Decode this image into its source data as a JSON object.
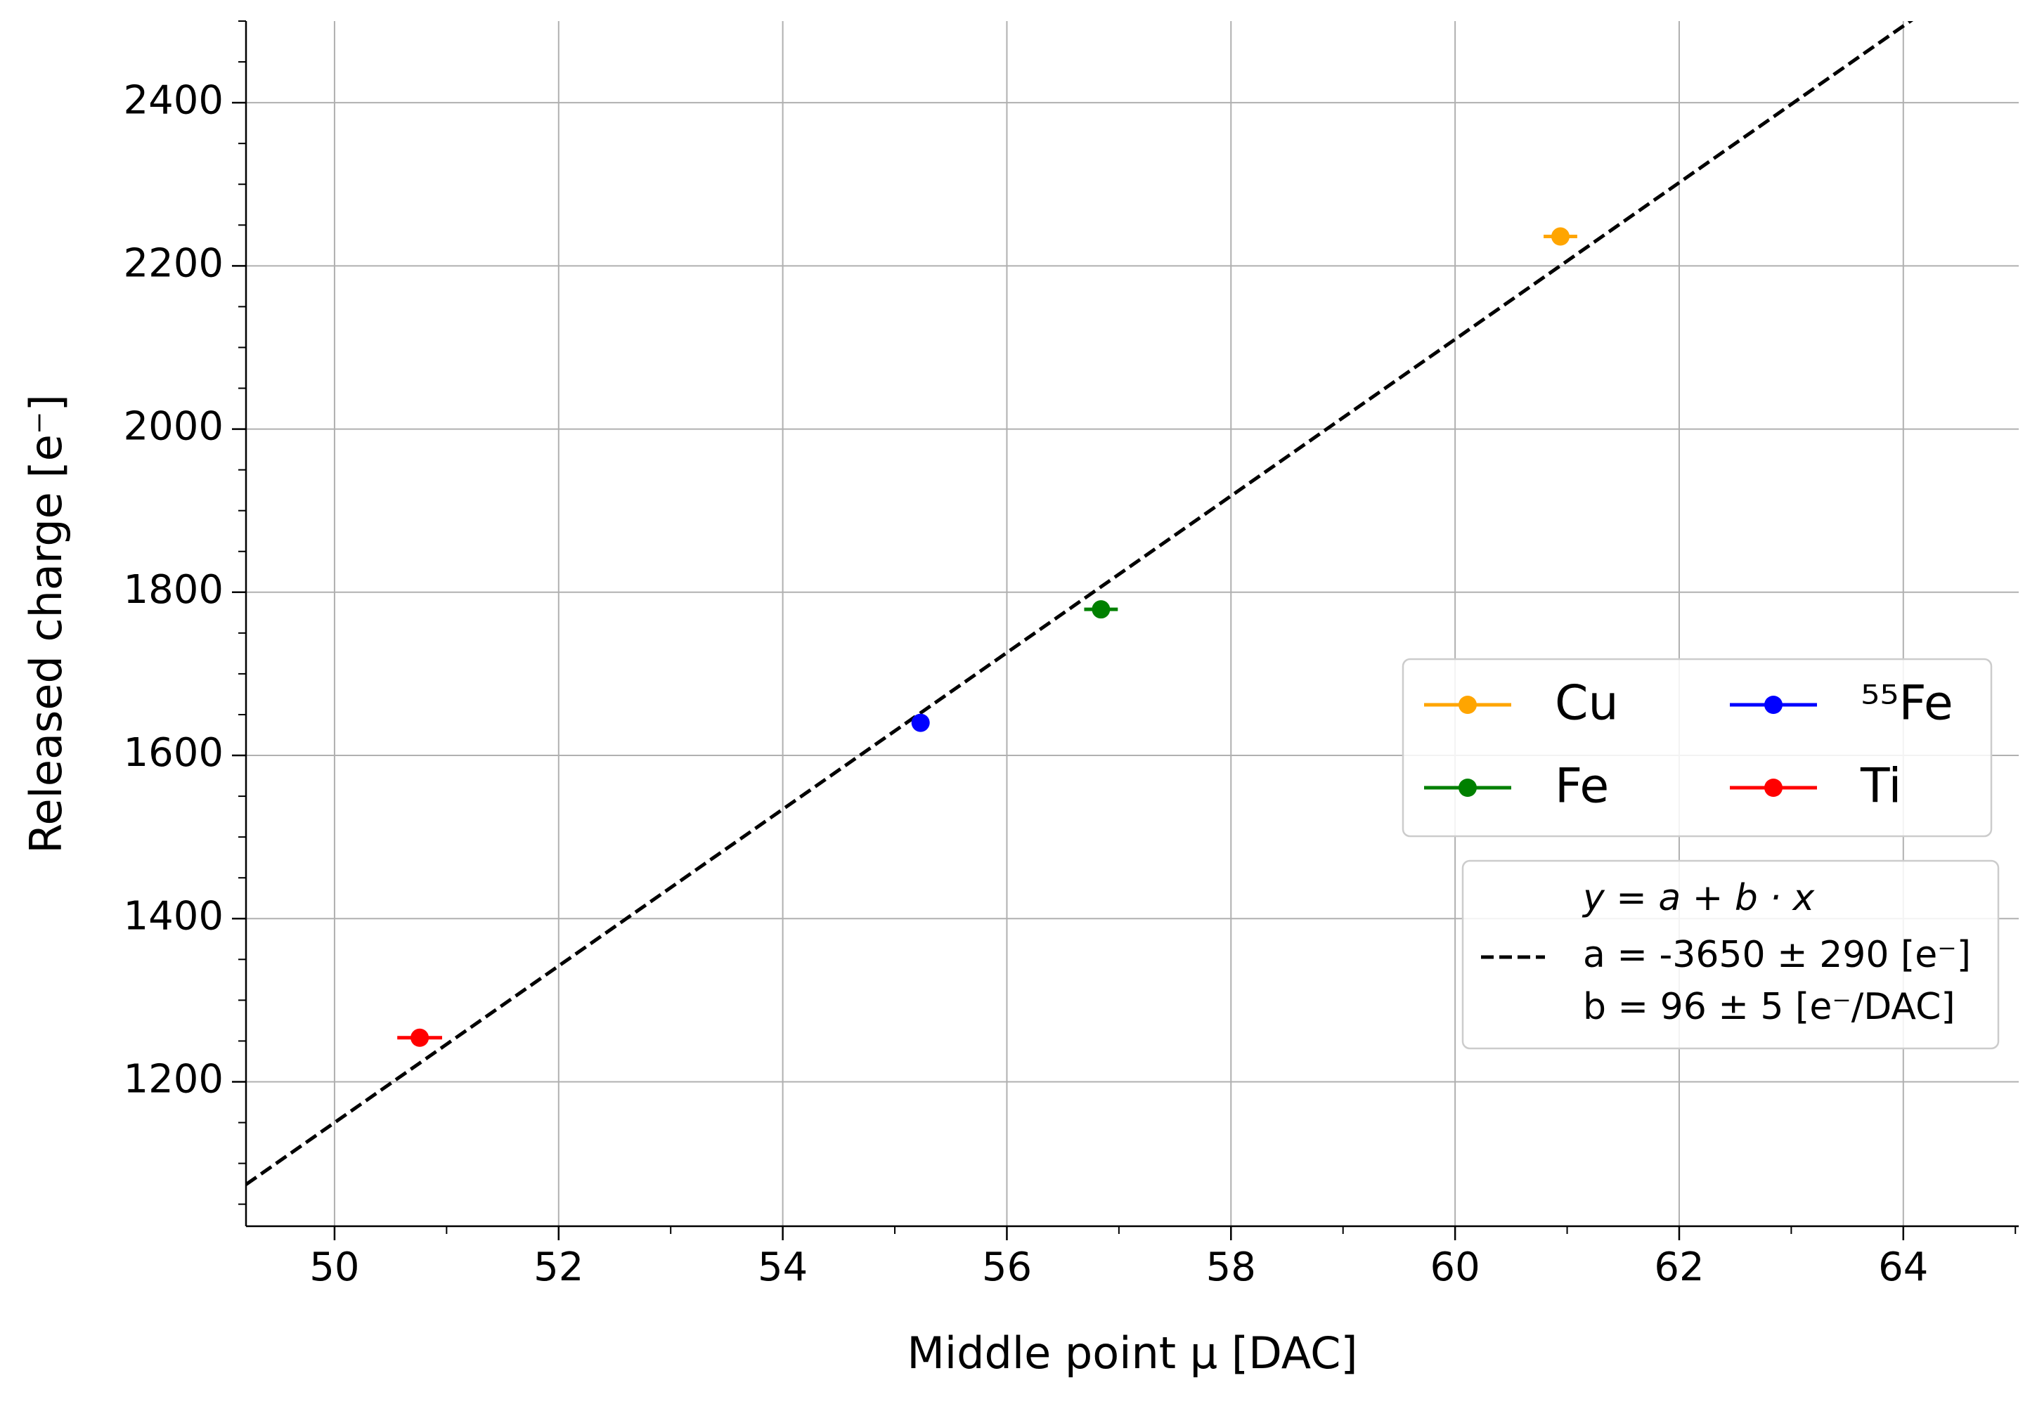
{
  "chart_data": {
    "type": "scatter",
    "xlabel": "Middle point μ [DAC]",
    "ylabel": "Released charge [e⁻]",
    "xlim": [
      49.21,
      65.03
    ],
    "ylim": [
      1023,
      2500
    ],
    "xticks": [
      50,
      52,
      54,
      56,
      58,
      60,
      62,
      64
    ],
    "yticks": [
      1200,
      1400,
      1600,
      1800,
      2000,
      2200,
      2400
    ],
    "xminorticks": [
      51,
      53,
      55,
      57,
      59,
      61,
      63,
      65
    ],
    "yminorticks": [
      1050,
      1100,
      1150,
      1250,
      1300,
      1350,
      1450,
      1500,
      1550,
      1650,
      1700,
      1750,
      1850,
      1900,
      1950,
      2050,
      2100,
      2150,
      2250,
      2300,
      2350,
      2450,
      2500
    ],
    "grid": true,
    "series": [
      {
        "name": "Cu",
        "color": "#ffa500",
        "x": [
          60.94
        ],
        "values": [
          2236
        ],
        "xerr": [
          0.15
        ]
      },
      {
        "name": "Fe",
        "color": "#008000",
        "x": [
          56.84
        ],
        "values": [
          1779
        ],
        "xerr": [
          0.15
        ]
      },
      {
        "name": "⁵⁵Fe",
        "color": "#0000ff",
        "x": [
          55.23
        ],
        "values": [
          1640
        ],
        "xerr": [
          0.05
        ]
      },
      {
        "name": "Ti",
        "color": "#ff0000",
        "x": [
          50.76
        ],
        "values": [
          1254
        ],
        "xerr": [
          0.2
        ]
      }
    ],
    "fit": {
      "a": -3650,
      "b": 96,
      "color": "#000000",
      "formula": "y = a + b · x",
      "a_label": "a = -3650 ± 290 [e⁻]",
      "b_label": "b = 96 ± 5 [e⁻/DAC]"
    }
  }
}
